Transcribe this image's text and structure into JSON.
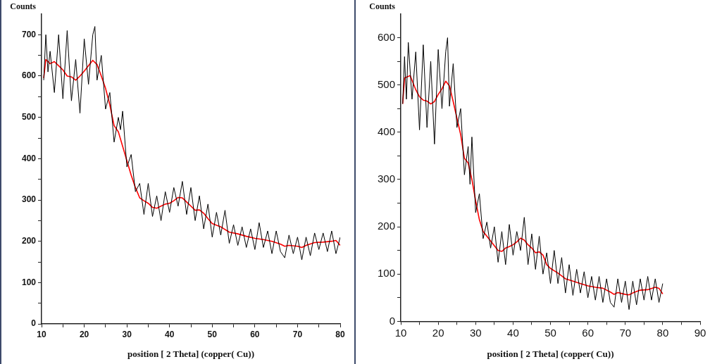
{
  "chart_data": [
    {
      "type": "line",
      "xlabel": "position [ 2 Theta] (copper( Cu))",
      "ylabel": "Counts",
      "xlim": [
        10,
        80
      ],
      "ylim": [
        0,
        750
      ],
      "xticks": [
        10,
        {
          "value": 15,
          "label": null
        },
        20,
        {
          "value": 25,
          "label": null
        },
        30,
        {
          "value": 35,
          "label": null
        },
        40,
        {
          "value": 45,
          "label": null
        },
        50,
        {
          "value": 55,
          "label": null
        },
        60,
        {
          "value": 65,
          "label": null
        },
        70,
        {
          "value": 75,
          "label": null
        },
        80
      ],
      "yticks": [
        0,
        {
          "value": 50,
          "label": null
        },
        100,
        {
          "value": 150,
          "label": null
        },
        200,
        {
          "value": 250,
          "label": null
        },
        300,
        {
          "value": 350,
          "label": null
        },
        400,
        {
          "value": 450,
          "label": null
        },
        500,
        {
          "value": 550,
          "label": null
        },
        600,
        {
          "value": 650,
          "label": null
        },
        700
      ],
      "grid": false,
      "legend": false,
      "marker": "none",
      "line_style": "solid",
      "series": [
        {
          "color": "#000000",
          "x": [
            10.5,
            11,
            11.5,
            12,
            13,
            14,
            15,
            16,
            17,
            18,
            19,
            20,
            21,
            22,
            22.5,
            23,
            24,
            25,
            26,
            27,
            28,
            28.5,
            29,
            30,
            31,
            32,
            33,
            34,
            35,
            36,
            37,
            38,
            39,
            40,
            41,
            42,
            43,
            44,
            45,
            46,
            47,
            48,
            49,
            50,
            51,
            52,
            53,
            54,
            55,
            56,
            57,
            58,
            59,
            60,
            61,
            62,
            63,
            64,
            65,
            66,
            67,
            68,
            69,
            70,
            71,
            72,
            73,
            74,
            75,
            76,
            77,
            78,
            79,
            80
          ],
          "values": [
            590,
            700,
            610,
            660,
            560,
            700,
            545,
            710,
            540,
            640,
            510,
            690,
            580,
            700,
            720,
            590,
            650,
            520,
            560,
            440,
            500,
            470,
            515,
            380,
            410,
            320,
            340,
            265,
            340,
            260,
            310,
            250,
            320,
            270,
            330,
            285,
            345,
            265,
            330,
            250,
            310,
            230,
            290,
            210,
            270,
            215,
            275,
            195,
            240,
            190,
            235,
            185,
            230,
            180,
            245,
            185,
            225,
            170,
            225,
            175,
            160,
            215,
            170,
            210,
            155,
            210,
            165,
            220,
            180,
            220,
            175,
            225,
            170,
            210
          ]
        },
        {
          "color": "#ff0000",
          "x": [
            10.5,
            11,
            12,
            13,
            14,
            15,
            16,
            17,
            18,
            19,
            20,
            21,
            22,
            23,
            24,
            25,
            26,
            27,
            28,
            29,
            30,
            31,
            32,
            33,
            34,
            35,
            36,
            37,
            38,
            39,
            40,
            41,
            42,
            43,
            44,
            45,
            46,
            47,
            48,
            49,
            50,
            52,
            54,
            56,
            58,
            60,
            62,
            64,
            66,
            67,
            68,
            70,
            71,
            72,
            74,
            76,
            78,
            79,
            80
          ],
          "values": [
            595,
            640,
            630,
            635,
            625,
            615,
            600,
            598,
            590,
            600,
            612,
            625,
            638,
            628,
            600,
            570,
            530,
            480,
            465,
            430,
            395,
            360,
            330,
            305,
            298,
            292,
            282,
            280,
            285,
            290,
            292,
            298,
            306,
            305,
            295,
            285,
            275,
            276,
            268,
            255,
            243,
            235,
            222,
            218,
            212,
            207,
            204,
            200,
            193,
            188,
            190,
            188,
            185,
            190,
            197,
            198,
            200,
            202,
            190
          ]
        }
      ]
    },
    {
      "type": "line",
      "xlabel": "position [ 2 Theta] (copper( Cu))",
      "ylabel": "Counts",
      "xlim": [
        10,
        90
      ],
      "ylim": [
        0,
        650
      ],
      "xticks": [
        10,
        {
          "value": 15,
          "label": null
        },
        20,
        {
          "value": 25,
          "label": null
        },
        30,
        {
          "value": 35,
          "label": null
        },
        40,
        {
          "value": 45,
          "label": null
        },
        50,
        {
          "value": 55,
          "label": null
        },
        60,
        {
          "value": 65,
          "label": null
        },
        70,
        {
          "value": 75,
          "label": null
        },
        80,
        {
          "value": 85,
          "label": null
        },
        90
      ],
      "yticks": [
        0,
        {
          "value": 50,
          "label": null
        },
        100,
        {
          "value": 150,
          "label": null
        },
        200,
        {
          "value": 250,
          "label": null
        },
        300,
        {
          "value": 350,
          "label": null
        },
        400,
        {
          "value": 450,
          "label": null
        },
        500,
        {
          "value": 550,
          "label": null
        },
        600
      ],
      "grid": false,
      "legend": false,
      "marker": "none",
      "line_style": "solid",
      "series": [
        {
          "color": "#000000",
          "x": [
            10.5,
            11,
            11.5,
            12,
            13,
            14,
            15,
            16,
            17,
            18,
            19,
            20,
            21,
            22,
            22.5,
            23,
            24,
            25,
            26,
            27,
            28,
            28.5,
            29,
            30,
            31,
            32,
            33,
            34,
            35,
            36,
            37,
            38,
            39,
            40,
            41,
            42,
            43,
            44,
            45,
            46,
            47,
            48,
            49,
            50,
            51,
            52,
            53,
            54,
            55,
            56,
            57,
            58,
            59,
            60,
            61,
            62,
            63,
            64,
            65,
            66,
            67,
            68,
            69,
            70,
            71,
            72,
            73,
            74,
            75,
            76,
            77,
            78,
            79,
            80
          ],
          "values": [
            460,
            560,
            470,
            590,
            470,
            570,
            405,
            585,
            410,
            550,
            375,
            575,
            450,
            570,
            600,
            455,
            545,
            410,
            450,
            310,
            370,
            290,
            390,
            230,
            270,
            175,
            210,
            155,
            200,
            125,
            190,
            120,
            205,
            140,
            190,
            150,
            220,
            120,
            185,
            110,
            180,
            100,
            145,
            80,
            150,
            80,
            135,
            60,
            120,
            55,
            110,
            60,
            105,
            50,
            95,
            45,
            95,
            40,
            90,
            40,
            30,
            90,
            40,
            85,
            25,
            85,
            35,
            90,
            45,
            95,
            45,
            90,
            40,
            80
          ]
        },
        {
          "color": "#ff0000",
          "x": [
            10.5,
            11,
            12,
            12.5,
            13,
            14,
            15,
            16,
            17,
            18,
            19,
            20,
            21,
            22,
            23,
            24,
            25,
            26,
            27,
            28,
            29,
            30,
            31,
            32,
            33,
            34,
            35,
            36,
            37,
            38,
            39,
            40,
            41,
            42,
            43,
            44,
            45,
            46,
            47,
            48,
            49,
            50,
            52,
            54,
            56,
            58,
            60,
            62,
            64,
            66,
            67,
            68,
            70,
            71,
            72,
            74,
            76,
            78,
            79,
            80
          ],
          "values": [
            460,
            515,
            518,
            520,
            510,
            490,
            475,
            468,
            466,
            460,
            465,
            480,
            492,
            508,
            498,
            465,
            430,
            395,
            345,
            335,
            300,
            255,
            215,
            190,
            180,
            170,
            160,
            150,
            148,
            155,
            158,
            162,
            168,
            176,
            172,
            162,
            155,
            145,
            147,
            140,
            120,
            112,
            102,
            90,
            85,
            80,
            75,
            72,
            70,
            62,
            57,
            61,
            57,
            56,
            60,
            66,
            67,
            72,
            70,
            58
          ]
        }
      ]
    }
  ]
}
